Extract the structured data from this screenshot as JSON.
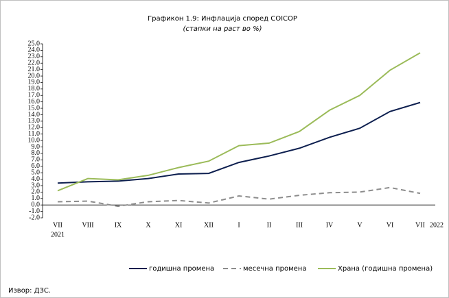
{
  "chart_data": {
    "type": "line",
    "title": "Графикон 1.9: Инфлација според COICOP",
    "subtitle": "(стапки на раст во %)",
    "categories": [
      "VII",
      "VIII",
      "IX",
      "X",
      "XI",
      "XII",
      "I",
      "II",
      "III",
      "IV",
      "V",
      "VI",
      "VII"
    ],
    "start_year": "2021",
    "end_year": "2022",
    "series": [
      {
        "name": "годишна промена",
        "color": "#0d1f4f",
        "dash": false,
        "values": [
          3.4,
          3.6,
          3.7,
          4.1,
          4.8,
          4.9,
          6.6,
          7.6,
          8.8,
          10.5,
          11.9,
          14.5,
          15.9
        ]
      },
      {
        "name": "месечна промена",
        "color": "#8c8c8c",
        "dash": true,
        "values": [
          0.5,
          0.6,
          -0.2,
          0.5,
          0.7,
          0.3,
          1.4,
          0.9,
          1.5,
          1.9,
          2.0,
          2.7,
          1.8
        ]
      },
      {
        "name": "Храна  (годишна промена)",
        "color": "#9bbb59",
        "dash": false,
        "values": [
          2.2,
          4.1,
          3.9,
          4.6,
          5.8,
          6.8,
          9.2,
          9.6,
          11.4,
          14.7,
          17.0,
          20.9,
          23.6
        ]
      }
    ],
    "ylim": [
      -2,
      25
    ],
    "yticks": [
      {
        "value": -2,
        "label": "-2.0"
      },
      {
        "value": -1,
        "label": "-1.0"
      },
      {
        "value": 0,
        "label": "0.0"
      },
      {
        "value": 1,
        "label": "1.0"
      },
      {
        "value": 2,
        "label": "2.0"
      },
      {
        "value": 3,
        "label": "3.0"
      },
      {
        "value": 4,
        "label": "4.0"
      },
      {
        "value": 5,
        "label": "5.0"
      },
      {
        "value": 6,
        "label": "6.0"
      },
      {
        "value": 7,
        "label": "7.0"
      },
      {
        "value": 8,
        "label": "8.0"
      },
      {
        "value": 9,
        "label": "9.0"
      },
      {
        "value": 10,
        "label": "10.0"
      },
      {
        "value": 11,
        "label": "11.0"
      },
      {
        "value": 12,
        "label": "12.0"
      },
      {
        "value": 13,
        "label": "13.0"
      },
      {
        "value": 14,
        "label": "14.0"
      },
      {
        "value": 15,
        "label": "15.0"
      },
      {
        "value": 16,
        "label": "16.0"
      },
      {
        "value": 17,
        "label": "17.0"
      },
      {
        "value": 18,
        "label": "18.0"
      },
      {
        "value": 19,
        "label": "19.0"
      },
      {
        "value": 20,
        "label": "20.0"
      },
      {
        "value": 21,
        "label": "21.0"
      },
      {
        "value": 22,
        "label": "22.0"
      },
      {
        "value": 23,
        "label": "23.0"
      },
      {
        "value": 24,
        "label": "24.0"
      },
      {
        "value": 25,
        "label": "25.0"
      }
    ],
    "grid": false,
    "legend": "bottom",
    "source": "Извор: ДЗС."
  }
}
